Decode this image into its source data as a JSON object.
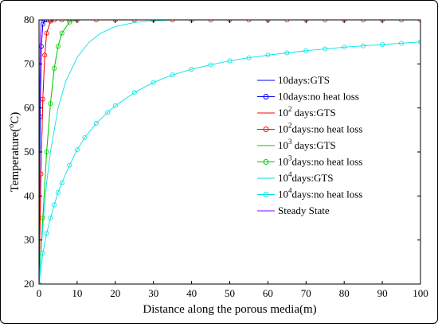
{
  "chart_data": {
    "type": "line",
    "title": "",
    "xlabel": "Distance along the porous media(m)",
    "ylabel": "Temperature(°C)",
    "ylabel_parts": {
      "pre": "Temperature(",
      "sup": "o",
      "post": "C)"
    },
    "xlim": [
      0,
      100
    ],
    "ylim": [
      20,
      80
    ],
    "xticks": [
      "0",
      "10",
      "20",
      "30",
      "40",
      "50",
      "60",
      "70",
      "80",
      "90",
      "100"
    ],
    "yticks": [
      "20",
      "30",
      "40",
      "50",
      "60",
      "70",
      "80"
    ],
    "grid": false,
    "legend_position": "right",
    "series": [
      {
        "name": "10days:GTS",
        "label_parts": [
          "10days:GTS"
        ],
        "color": "#0000ff",
        "marker": "none",
        "x": [
          0,
          0.3,
          0.6,
          1.0,
          1.5,
          2,
          3,
          100
        ],
        "y": [
          20,
          58,
          74,
          79,
          80,
          80,
          80,
          80
        ]
      },
      {
        "name": "10days:no heat loss",
        "label_parts": [
          "10days:no heat loss"
        ],
        "color": "#0000ff",
        "marker": "circle",
        "x": [
          0,
          0.3,
          0.6,
          1.0,
          1.5,
          2,
          3
        ],
        "y": [
          20,
          58,
          74,
          79,
          80,
          80,
          80
        ]
      },
      {
        "name": "10^2 days:GTS",
        "label_parts": [
          "10",
          "2",
          " days:GTS"
        ],
        "color": "#ff0000",
        "marker": "none",
        "x": [
          0,
          0.5,
          1,
          1.5,
          2,
          3,
          4,
          100
        ],
        "y": [
          20,
          45,
          62,
          72,
          77,
          79.7,
          80,
          80
        ]
      },
      {
        "name": "10^2days:no heat loss",
        "label_parts": [
          "10",
          "2",
          "days:no heat loss"
        ],
        "color": "#ff0000",
        "marker": "circle",
        "x": [
          0,
          0.5,
          1,
          1.5,
          2,
          3,
          4,
          6,
          8,
          10,
          15,
          20,
          25,
          30,
          35,
          40,
          45,
          50,
          55,
          60,
          65,
          70,
          75,
          80,
          85,
          90,
          95,
          100
        ],
        "y": [
          20,
          45,
          62,
          72,
          77,
          79.7,
          80,
          80,
          80,
          80,
          80,
          80,
          80,
          80,
          80,
          80,
          80,
          80,
          80,
          80,
          80,
          80,
          80,
          80,
          80,
          80,
          80,
          80
        ]
      },
      {
        "name": "10^3 days:GTS",
        "label_parts": [
          "10",
          "3",
          " days:GTS"
        ],
        "color": "#00cc00",
        "marker": "none",
        "x": [
          0,
          1,
          2,
          3,
          4,
          5,
          6,
          8,
          10,
          100
        ],
        "y": [
          20,
          35,
          50,
          61,
          69,
          74,
          77,
          79.5,
          80,
          80
        ]
      },
      {
        "name": "10^3days:no heat loss",
        "label_parts": [
          "10",
          "3",
          "days:no heat loss"
        ],
        "color": "#00cc00",
        "marker": "circle",
        "x": [
          0,
          1,
          2,
          3,
          4,
          5,
          6,
          8
        ],
        "y": [
          20,
          35,
          50,
          61,
          69,
          74,
          77,
          79.5
        ]
      },
      {
        "name": "10^4days:GTS",
        "label_parts": [
          "10",
          "4",
          "days:GTS"
        ],
        "color": "#00e5e5",
        "marker": "none",
        "x": [
          0,
          1,
          2,
          3,
          5,
          7,
          10,
          13,
          16,
          20,
          25,
          30,
          35,
          40,
          100
        ],
        "y": [
          20,
          33,
          43,
          50,
          60,
          66,
          71.5,
          74.8,
          76.9,
          78.5,
          79.4,
          79.8,
          80,
          80,
          80
        ]
      },
      {
        "name": "10^4days:no heat loss",
        "label_parts": [
          "10",
          "4",
          "days:no heat loss"
        ],
        "color": "#00e5e5",
        "marker": "circle",
        "x": [
          0,
          1,
          2,
          3,
          4,
          5,
          6,
          8,
          10,
          12,
          15,
          18,
          20,
          25,
          30,
          35,
          40,
          45,
          50,
          55,
          60,
          65,
          70,
          75,
          80,
          85,
          90,
          95,
          100
        ],
        "y": [
          20,
          27,
          31.5,
          35,
          38,
          40.8,
          43,
          47,
          50.5,
          53.3,
          56.5,
          59,
          60.5,
          63.5,
          65.8,
          67.5,
          68.8,
          69.8,
          70.7,
          71.4,
          72,
          72.5,
          73,
          73.4,
          73.8,
          74.1,
          74.4,
          74.7,
          75
        ]
      },
      {
        "name": "Steady State",
        "label_parts": [
          "Steady State"
        ],
        "color": "#8000ff",
        "marker": "none",
        "x": [
          0,
          0.15,
          0.3,
          0.6,
          1,
          100
        ],
        "y": [
          20,
          60,
          76,
          79.8,
          80,
          80
        ]
      }
    ]
  }
}
